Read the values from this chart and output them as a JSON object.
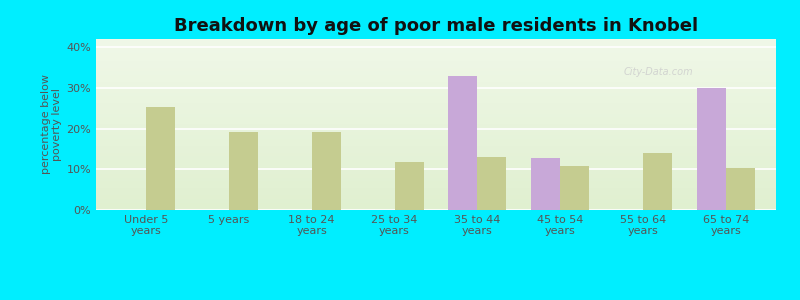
{
  "title": "Breakdown by age of poor male residents in Knobel",
  "ylabel": "percentage below\npoverty level",
  "categories": [
    "Under 5\nyears",
    "5 years",
    "18 to 24\nyears",
    "25 to 34\nyears",
    "35 to 44\nyears",
    "45 to 54\nyears",
    "55 to 64\nyears",
    "65 to 74\nyears"
  ],
  "knobel": [
    0,
    0,
    0,
    0,
    33.0,
    12.8,
    0,
    30.0
  ],
  "arkansas": [
    25.3,
    19.2,
    19.2,
    11.8,
    12.9,
    10.8,
    13.9,
    10.3
  ],
  "knobel_color": "#c8a8d8",
  "arkansas_color": "#c5cc90",
  "bg_top_color": "#f0f8e8",
  "bg_bottom_color": "#e0f0d0",
  "outer_bg": "#00eeff",
  "ylim": [
    0,
    42
  ],
  "yticks": [
    0,
    10,
    20,
    30,
    40
  ],
  "ytick_labels": [
    "0%",
    "10%",
    "20%",
    "30%",
    "40%"
  ],
  "bar_width": 0.35,
  "title_fontsize": 13,
  "axis_fontsize": 8,
  "tick_fontsize": 8,
  "legend_fontsize": 9
}
